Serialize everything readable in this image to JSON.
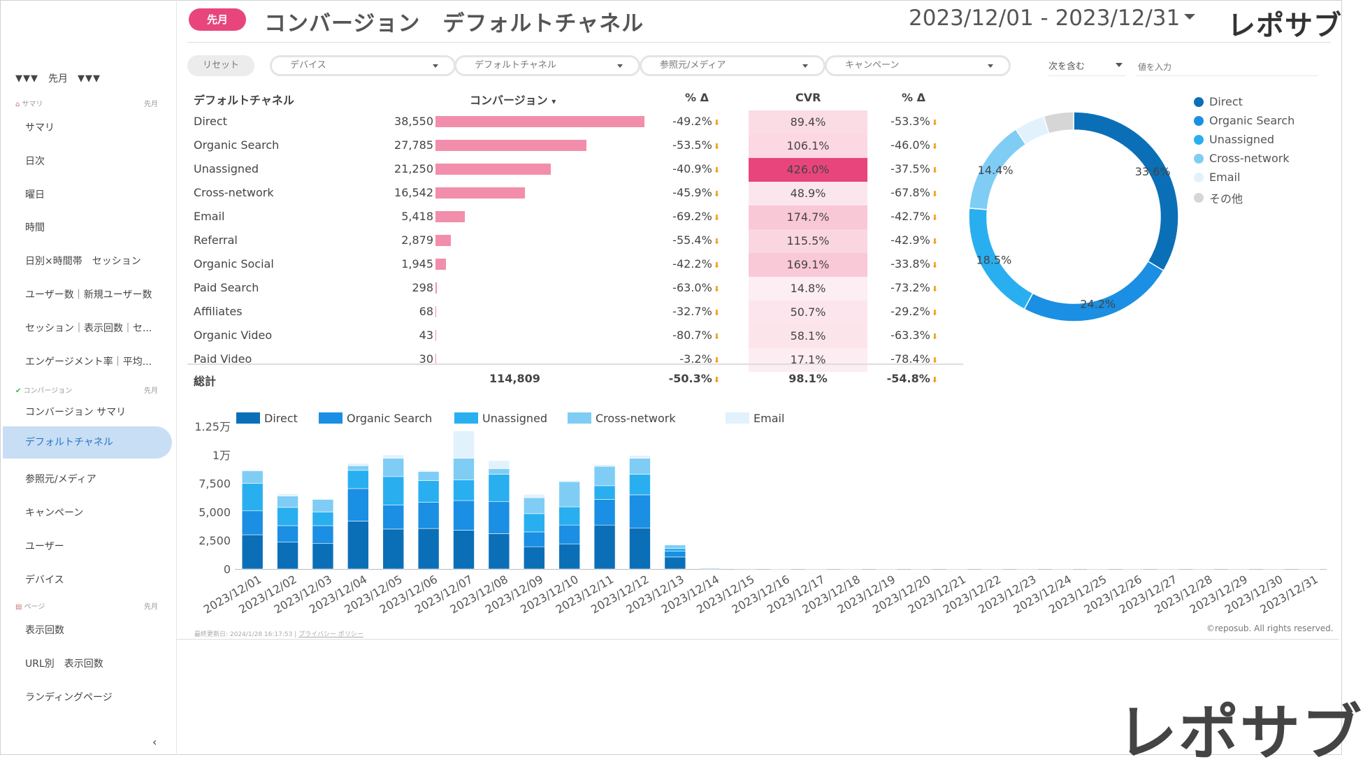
{
  "sidebar": {
    "top_label": "先月",
    "top_tri_left": "▼▼▼",
    "top_tri_right": "▼▼▼",
    "sections": [
      {
        "icon": "house-icon",
        "label": "サマリ",
        "period": "先月"
      },
      {
        "icon": "check-icon",
        "label": "コンバージョン",
        "period": "先月"
      },
      {
        "icon": "page-icon",
        "label": "ページ",
        "period": "先月"
      }
    ],
    "items": [
      "サマリ",
      "日次",
      "曜日",
      "時間",
      "日別×時間帯　セッション",
      "ユーザー数｜新規ユーザー数",
      "セッション｜表示回数｜セ...",
      "エンゲージメント率｜平均...",
      "コンバージョン サマリ",
      "デフォルトチャネル",
      "参照元/メディア",
      "キャンペーン",
      "ユーザー",
      "デバイス",
      "表示回数",
      "URL別　表示回数",
      "ランディングページ"
    ],
    "collapse": "‹"
  },
  "header": {
    "badge": "先月",
    "title": "コンバージョン　デフォルトチャネル",
    "date_range": "2023/12/01 - 2023/12/31",
    "logo": "レポサブ"
  },
  "filters": {
    "reset": "リセット",
    "dropdowns": [
      "デバイス",
      "デフォルトチャネル",
      "参照元/メディア",
      "キャンペーン"
    ],
    "include_mode": "次を含む",
    "value_placeholder": "値を入力"
  },
  "table": {
    "headers": {
      "channel": "デフォルトチャネル",
      "conversion": "コンバージョン",
      "pct1": "% Δ",
      "cvr": "CVR",
      "pct2": "% Δ"
    },
    "sort_icon": "▾",
    "rows": [
      {
        "name": "Direct",
        "conv": "38,550",
        "conv_num": 38550,
        "pct": "-49.2%",
        "cvr": "89.4%",
        "cvr_num": 89.4,
        "pct2": "-53.3%"
      },
      {
        "name": "Organic Search",
        "conv": "27,785",
        "conv_num": 27785,
        "pct": "-53.5%",
        "cvr": "106.1%",
        "cvr_num": 106.1,
        "pct2": "-46.0%"
      },
      {
        "name": "Unassigned",
        "conv": "21,250",
        "conv_num": 21250,
        "pct": "-40.9%",
        "cvr": "426.0%",
        "cvr_num": 426.0,
        "pct2": "-37.5%"
      },
      {
        "name": "Cross-network",
        "conv": "16,542",
        "conv_num": 16542,
        "pct": "-45.9%",
        "cvr": "48.9%",
        "cvr_num": 48.9,
        "pct2": "-67.8%"
      },
      {
        "name": "Email",
        "conv": "5,418",
        "conv_num": 5418,
        "pct": "-69.2%",
        "cvr": "174.7%",
        "cvr_num": 174.7,
        "pct2": "-42.7%"
      },
      {
        "name": "Referral",
        "conv": "2,879",
        "conv_num": 2879,
        "pct": "-55.4%",
        "cvr": "115.5%",
        "cvr_num": 115.5,
        "pct2": "-42.9%"
      },
      {
        "name": "Organic Social",
        "conv": "1,945",
        "conv_num": 1945,
        "pct": "-42.2%",
        "cvr": "169.1%",
        "cvr_num": 169.1,
        "pct2": "-33.8%"
      },
      {
        "name": "Paid Search",
        "conv": "298",
        "conv_num": 298,
        "pct": "-63.0%",
        "cvr": "14.8%",
        "cvr_num": 14.8,
        "pct2": "-73.2%"
      },
      {
        "name": "Affiliates",
        "conv": "68",
        "conv_num": 68,
        "pct": "-32.7%",
        "cvr": "50.7%",
        "cvr_num": 50.7,
        "pct2": "-29.2%"
      },
      {
        "name": "Organic Video",
        "conv": "43",
        "conv_num": 43,
        "pct": "-80.7%",
        "cvr": "58.1%",
        "cvr_num": 58.1,
        "pct2": "-63.3%"
      },
      {
        "name": "Paid Video",
        "conv": "30",
        "conv_num": 30,
        "pct": "-3.2%",
        "cvr": "17.1%",
        "cvr_num": 17.1,
        "pct2": "-78.4%"
      }
    ],
    "total": {
      "label": "総計",
      "conv": "114,809",
      "pct": "-50.3%",
      "cvr": "98.1%",
      "pct2": "-54.8%"
    },
    "down_arrow": "⬇"
  },
  "colors": {
    "accent_pink": "#e8457c",
    "bar_pink": "#f28eac",
    "cvr_max": "#e8457c",
    "down_arrow": "#f39c12",
    "series": [
      "#0b6fb8",
      "#1a8fe3",
      "#29aff0",
      "#7fcdf5",
      "#e1f2fc",
      "#d6d6d6"
    ]
  },
  "chart_data": [
    {
      "type": "pie",
      "donut": true,
      "labels": [
        "Direct",
        "Organic Search",
        "Unassigned",
        "Cross-network",
        "Email",
        "その他"
      ],
      "values": [
        33.6,
        24.2,
        18.5,
        14.4,
        4.7,
        4.6
      ],
      "data_labels": [
        "33.6%",
        "24.2%",
        "18.5%",
        "14.4%",
        "",
        ""
      ],
      "legend": "right"
    },
    {
      "type": "bar",
      "stacked": true,
      "legend": "top",
      "series_names": [
        "Direct",
        "Organic Search",
        "Unassigned",
        "Cross-network",
        "Email"
      ],
      "categories": [
        "2023/12/01",
        "2023/12/02",
        "2023/12/03",
        "2023/12/04",
        "2023/12/05",
        "2023/12/06",
        "2023/12/07",
        "2023/12/08",
        "2023/12/09",
        "2023/12/10",
        "2023/12/11",
        "2023/12/12",
        "2023/12/13",
        "2023/12/14",
        "2023/12/15",
        "2023/12/16",
        "2023/12/17",
        "2023/12/18",
        "2023/12/19",
        "2023/12/20",
        "2023/12/21",
        "2023/12/22",
        "2023/12/23",
        "2023/12/24",
        "2023/12/25",
        "2023/12/26",
        "2023/12/27",
        "2023/12/28",
        "2023/12/29",
        "2023/12/30",
        "2023/12/31"
      ],
      "series": [
        {
          "name": "Direct",
          "values": [
            3000,
            2350,
            2250,
            4200,
            3500,
            3550,
            3400,
            3100,
            1950,
            2200,
            3850,
            3600,
            1050,
            50,
            30,
            20,
            20,
            20,
            20,
            20,
            20,
            20,
            20,
            20,
            20,
            20,
            20,
            20,
            20,
            20,
            20
          ]
        },
        {
          "name": "Organic Search",
          "values": [
            2100,
            1450,
            1550,
            2850,
            2100,
            2300,
            2600,
            2800,
            1300,
            1650,
            2250,
            2900,
            500,
            40,
            20,
            10,
            10,
            10,
            10,
            10,
            10,
            10,
            10,
            10,
            10,
            10,
            10,
            10,
            10,
            10,
            10
          ]
        },
        {
          "name": "Unassigned",
          "values": [
            2400,
            1600,
            1200,
            1600,
            2500,
            1900,
            1800,
            2400,
            1600,
            1600,
            1200,
            1800,
            250,
            20,
            10,
            10,
            10,
            10,
            10,
            10,
            10,
            10,
            10,
            10,
            10,
            10,
            10,
            10,
            10,
            10,
            10
          ]
        },
        {
          "name": "Cross-network",
          "values": [
            1100,
            1000,
            1100,
            400,
            1600,
            800,
            1900,
            500,
            1400,
            2200,
            1700,
            1400,
            300,
            10,
            10,
            10,
            10,
            10,
            10,
            10,
            10,
            10,
            10,
            10,
            10,
            10,
            10,
            10,
            10,
            10,
            10
          ]
        },
        {
          "name": "Email",
          "values": [
            100,
            200,
            50,
            200,
            300,
            100,
            2400,
            700,
            300,
            100,
            150,
            250,
            50,
            0,
            0,
            0,
            0,
            0,
            0,
            0,
            0,
            0,
            0,
            0,
            0,
            0,
            0,
            0,
            0,
            0,
            0
          ]
        }
      ],
      "ylim": [
        0,
        12500
      ],
      "yticks": [
        "0",
        "2,500",
        "5,000",
        "7,500",
        "1万",
        "1.25万"
      ]
    }
  ],
  "footer": {
    "updated": "最終更新日: 2024/1/28 16:17:53",
    "separator": "|",
    "privacy": "プライバシー ポリシー",
    "copyright": "©reposub. All rights reserved."
  },
  "logo_big": "レポサブ"
}
